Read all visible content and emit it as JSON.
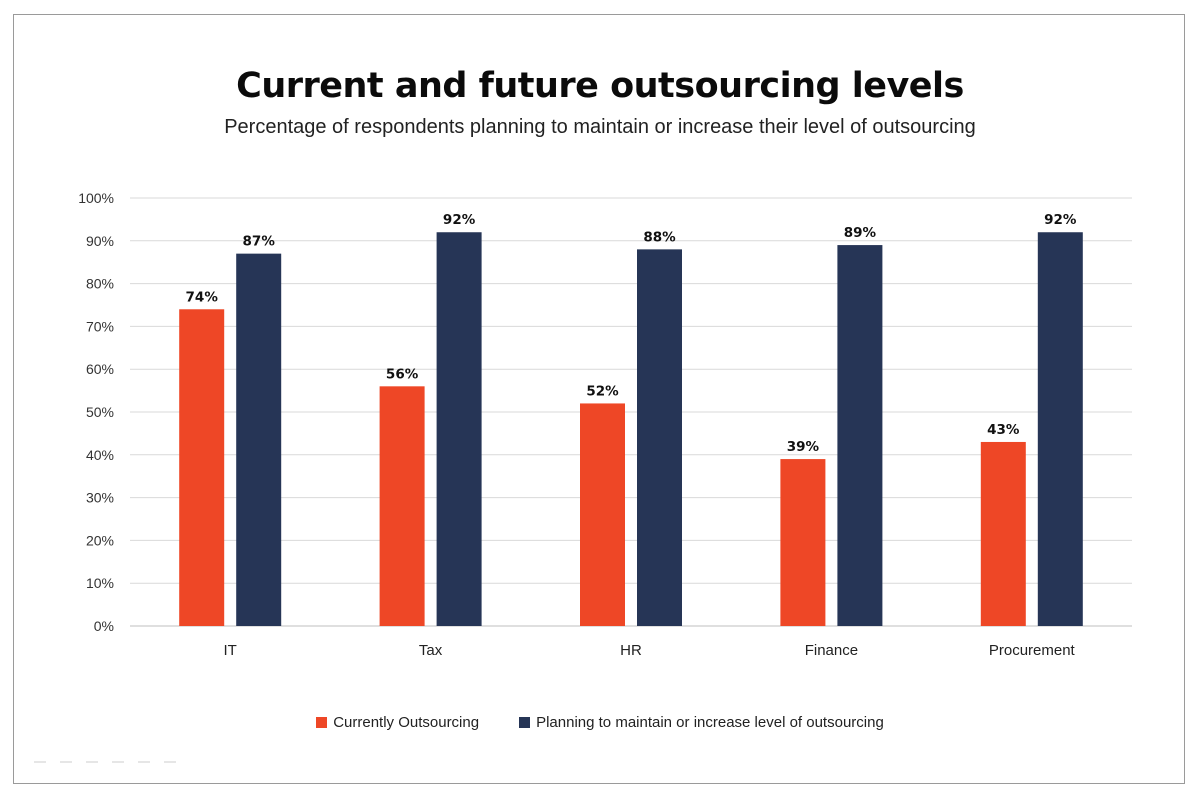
{
  "chart_data": {
    "type": "bar",
    "title": "Current and future outsourcing levels",
    "subtitle": "Percentage of respondents planning to maintain or increase their level of outsourcing",
    "categories": [
      "IT",
      "Tax",
      "HR",
      "Finance",
      "Procurement"
    ],
    "series": [
      {
        "name": "Currently Outsourcing",
        "values": [
          74,
          56,
          52,
          39,
          43
        ],
        "color": "#ee4726"
      },
      {
        "name": "Planning to maintain or increase level of outsourcing",
        "values": [
          87,
          92,
          88,
          89,
          92
        ],
        "color": "#263556"
      }
    ],
    "ylim": [
      0,
      100
    ],
    "yticks": [
      "0%",
      "10%",
      "20%",
      "30%",
      "40%",
      "50%",
      "60%",
      "70%",
      "80%",
      "90%",
      "100%"
    ],
    "value_suffix": "%",
    "grid": true,
    "legend_position": "bottom"
  }
}
